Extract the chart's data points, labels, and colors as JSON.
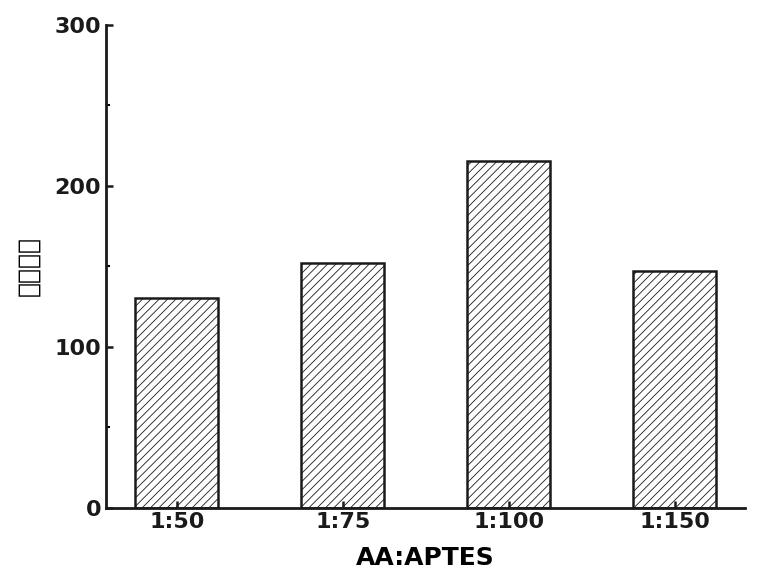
{
  "categories": [
    "1:50",
    "1:75",
    "1:100",
    "1:150"
  ],
  "values": [
    130,
    152,
    215,
    147
  ],
  "bar_color": "#ffffff",
  "bar_edge_color": "#1a1a1a",
  "bar_linewidth": 1.8,
  "bar_width": 0.5,
  "xlabel": "AA:APTES",
  "ylabel": "荧光强度",
  "ylim": [
    0,
    300
  ],
  "yticks": [
    0,
    100,
    200,
    300
  ],
  "xlabel_fontsize": 18,
  "ylabel_fontsize": 18,
  "tick_fontsize": 16,
  "hatch_pattern": "////",
  "hatch_linewidth": 0.6,
  "background_color": "#ffffff",
  "spine_linewidth": 2.0
}
